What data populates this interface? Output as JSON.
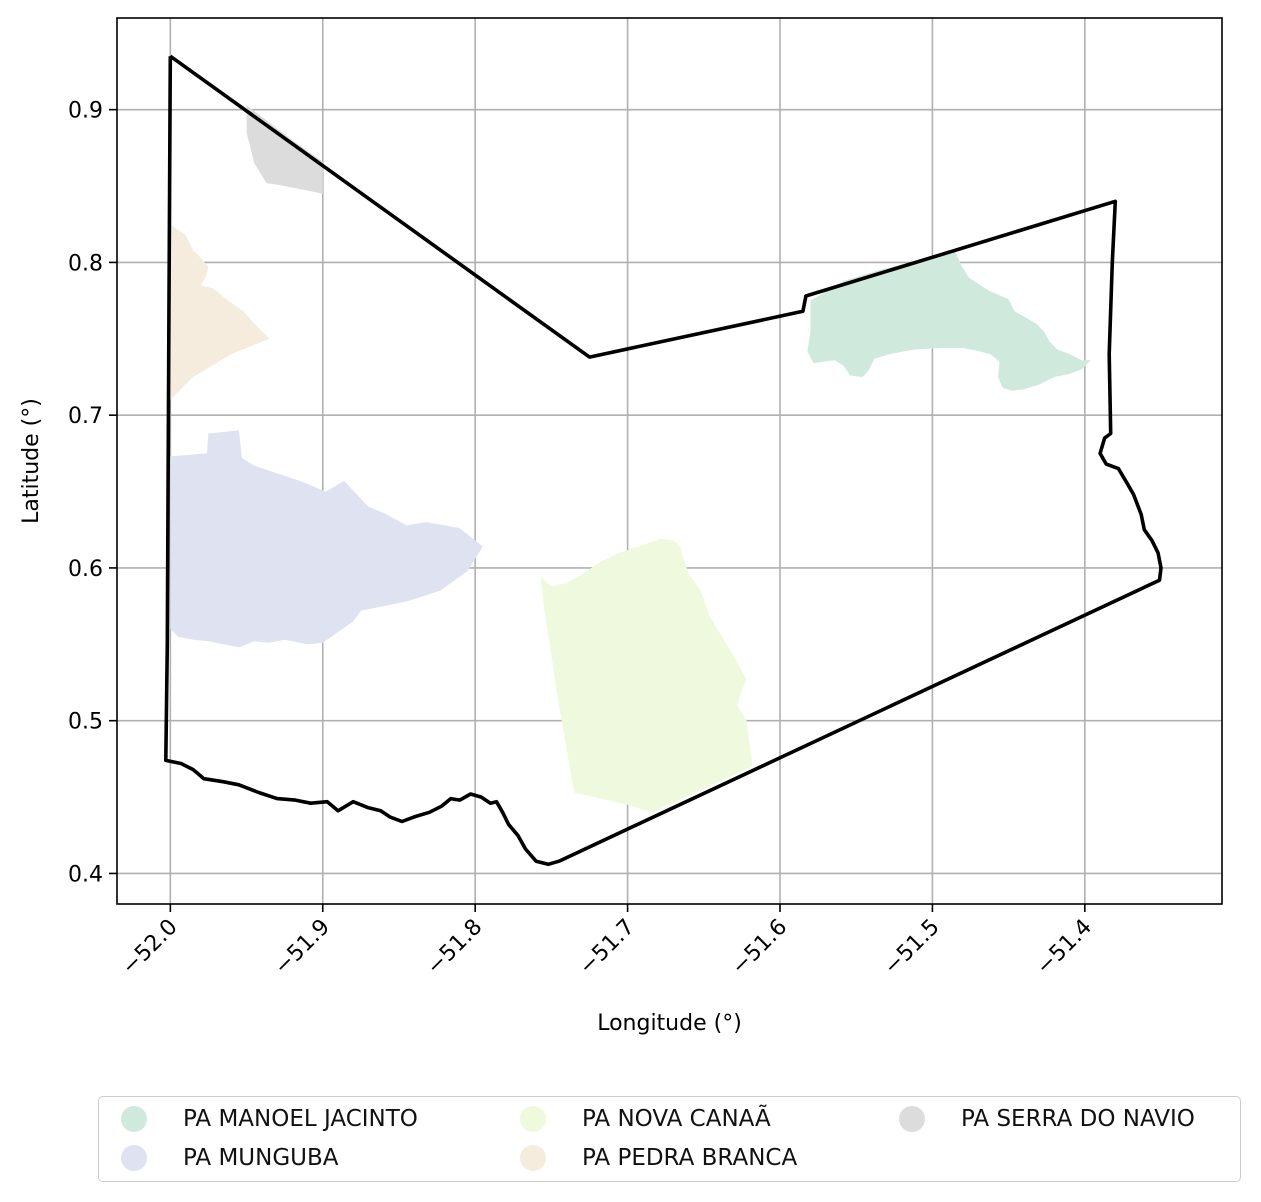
{
  "chart_data": {
    "type": "map",
    "xlabel": "Longitude (°)",
    "ylabel": "Latitude (°)",
    "xlim": [
      -52.035,
      -51.31
    ],
    "ylim": [
      0.38,
      0.96
    ],
    "xticks": [
      -52.0,
      -51.9,
      -51.8,
      -51.7,
      -51.6,
      -51.5,
      -51.4
    ],
    "xtick_labels": [
      "−52.0",
      "−51.9",
      "−51.8",
      "−51.7",
      "−51.6",
      "−51.5",
      "−51.4"
    ],
    "yticks": [
      0.4,
      0.5,
      0.6,
      0.7,
      0.8,
      0.9
    ],
    "ytick_labels": [
      "0.4",
      "0.5",
      "0.6",
      "0.7",
      "0.8",
      "0.9"
    ],
    "grid": true,
    "legend_position": "bottom",
    "boundary": {
      "color": "#000000",
      "points": [
        [
          -52.0,
          0.935
        ],
        [
          -51.725,
          0.738
        ],
        [
          -51.585,
          0.768
        ],
        [
          -51.583,
          0.778
        ],
        [
          -51.38,
          0.84
        ],
        [
          -51.382,
          0.8
        ],
        [
          -51.384,
          0.74
        ],
        [
          -51.383,
          0.688
        ],
        [
          -51.387,
          0.685
        ],
        [
          -51.39,
          0.675
        ],
        [
          -51.386,
          0.668
        ],
        [
          -51.378,
          0.665
        ],
        [
          -51.372,
          0.655
        ],
        [
          -51.368,
          0.648
        ],
        [
          -51.363,
          0.635
        ],
        [
          -51.361,
          0.625
        ],
        [
          -51.356,
          0.618
        ],
        [
          -51.352,
          0.61
        ],
        [
          -51.35,
          0.6
        ],
        [
          -51.351,
          0.592
        ],
        [
          -51.745,
          0.408
        ],
        [
          -51.752,
          0.406
        ],
        [
          -51.76,
          0.408
        ],
        [
          -51.767,
          0.416
        ],
        [
          -51.772,
          0.425
        ],
        [
          -51.778,
          0.432
        ],
        [
          -51.782,
          0.44
        ],
        [
          -51.786,
          0.447
        ],
        [
          -51.79,
          0.446
        ],
        [
          -51.796,
          0.45
        ],
        [
          -51.803,
          0.452
        ],
        [
          -51.81,
          0.448
        ],
        [
          -51.816,
          0.449
        ],
        [
          -51.822,
          0.444
        ],
        [
          -51.83,
          0.44
        ],
        [
          -51.84,
          0.437
        ],
        [
          -51.848,
          0.434
        ],
        [
          -51.856,
          0.437
        ],
        [
          -51.862,
          0.441
        ],
        [
          -51.87,
          0.443
        ],
        [
          -51.88,
          0.447
        ],
        [
          -51.89,
          0.441
        ],
        [
          -51.897,
          0.447
        ],
        [
          -51.908,
          0.446
        ],
        [
          -51.918,
          0.448
        ],
        [
          -51.93,
          0.449
        ],
        [
          -51.942,
          0.453
        ],
        [
          -51.955,
          0.458
        ],
        [
          -51.965,
          0.46
        ],
        [
          -51.978,
          0.462
        ],
        [
          -51.985,
          0.468
        ],
        [
          -51.993,
          0.472
        ],
        [
          -52.003,
          0.474
        ],
        [
          -52.002,
          0.55
        ],
        [
          -52.001,
          0.75
        ],
        [
          -52.0,
          0.935
        ]
      ]
    },
    "regions": [
      {
        "name": "PA MANOEL JACINTO",
        "color": "#cfeadd",
        "polygon": [
          [
            -51.58,
            0.775
          ],
          [
            -51.558,
            0.788
          ],
          [
            -51.535,
            0.795
          ],
          [
            -51.51,
            0.801
          ],
          [
            -51.485,
            0.807
          ],
          [
            -51.481,
            0.798
          ],
          [
            -51.476,
            0.79
          ],
          [
            -51.47,
            0.786
          ],
          [
            -51.462,
            0.781
          ],
          [
            -51.45,
            0.776
          ],
          [
            -51.446,
            0.768
          ],
          [
            -51.439,
            0.764
          ],
          [
            -51.432,
            0.76
          ],
          [
            -51.427,
            0.755
          ],
          [
            -51.423,
            0.748
          ],
          [
            -51.418,
            0.743
          ],
          [
            -51.41,
            0.74
          ],
          [
            -51.402,
            0.736
          ],
          [
            -51.396,
            0.736
          ],
          [
            -51.402,
            0.73
          ],
          [
            -51.41,
            0.727
          ],
          [
            -51.42,
            0.725
          ],
          [
            -51.43,
            0.72
          ],
          [
            -51.44,
            0.717
          ],
          [
            -51.448,
            0.716
          ],
          [
            -51.454,
            0.718
          ],
          [
            -51.457,
            0.725
          ],
          [
            -51.456,
            0.735
          ],
          [
            -51.462,
            0.74
          ],
          [
            -51.47,
            0.742
          ],
          [
            -51.48,
            0.744
          ],
          [
            -51.495,
            0.744
          ],
          [
            -51.512,
            0.743
          ],
          [
            -51.528,
            0.74
          ],
          [
            -51.538,
            0.737
          ],
          [
            -51.542,
            0.729
          ],
          [
            -51.546,
            0.725
          ],
          [
            -51.554,
            0.726
          ],
          [
            -51.558,
            0.732
          ],
          [
            -51.564,
            0.736
          ],
          [
            -51.572,
            0.735
          ],
          [
            -51.578,
            0.734
          ],
          [
            -51.582,
            0.742
          ],
          [
            -51.58,
            0.755
          ]
        ]
      },
      {
        "name": "PA MUNGUBA",
        "color": "#dfe3f1",
        "polygon": [
          [
            -52.0,
            0.673
          ],
          [
            -51.976,
            0.675
          ],
          [
            -51.975,
            0.688
          ],
          [
            -51.955,
            0.69
          ],
          [
            -51.953,
            0.672
          ],
          [
            -51.945,
            0.667
          ],
          [
            -51.93,
            0.662
          ],
          [
            -51.915,
            0.657
          ],
          [
            -51.898,
            0.65
          ],
          [
            -51.886,
            0.657
          ],
          [
            -51.87,
            0.64
          ],
          [
            -51.86,
            0.636
          ],
          [
            -51.845,
            0.628
          ],
          [
            -51.832,
            0.63
          ],
          [
            -51.82,
            0.628
          ],
          [
            -51.81,
            0.626
          ],
          [
            -51.795,
            0.614
          ],
          [
            -51.805,
            0.598
          ],
          [
            -51.823,
            0.585
          ],
          [
            -51.845,
            0.578
          ],
          [
            -51.86,
            0.575
          ],
          [
            -51.875,
            0.572
          ],
          [
            -51.88,
            0.565
          ],
          [
            -51.9,
            0.551
          ],
          [
            -51.91,
            0.55
          ],
          [
            -51.925,
            0.553
          ],
          [
            -51.935,
            0.551
          ],
          [
            -51.945,
            0.552
          ],
          [
            -51.955,
            0.548
          ],
          [
            -51.965,
            0.55
          ],
          [
            -51.975,
            0.552
          ],
          [
            -51.985,
            0.553
          ],
          [
            -51.995,
            0.555
          ],
          [
            -52.0,
            0.56
          ]
        ]
      },
      {
        "name": "PA NOVA CANAÃ",
        "color": "#eef9dd",
        "polygon": [
          [
            -51.757,
            0.594
          ],
          [
            -51.75,
            0.588
          ],
          [
            -51.74,
            0.59
          ],
          [
            -51.728,
            0.597
          ],
          [
            -51.718,
            0.604
          ],
          [
            -51.705,
            0.61
          ],
          [
            -51.69,
            0.615
          ],
          [
            -51.678,
            0.619
          ],
          [
            -51.67,
            0.618
          ],
          [
            -51.666,
            0.615
          ],
          [
            -51.66,
            0.596
          ],
          [
            -51.652,
            0.585
          ],
          [
            -51.646,
            0.568
          ],
          [
            -51.632,
            0.545
          ],
          [
            -51.622,
            0.527
          ],
          [
            -51.625,
            0.52
          ],
          [
            -51.628,
            0.51
          ],
          [
            -51.622,
            0.5
          ],
          [
            -51.62,
            0.485
          ],
          [
            -51.618,
            0.47
          ],
          [
            -51.684,
            0.44
          ],
          [
            -51.7,
            0.445
          ],
          [
            -51.735,
            0.453
          ],
          [
            -51.745,
            0.51
          ],
          [
            -51.755,
            0.575
          ]
        ]
      },
      {
        "name": "PA PEDRA BRANCA",
        "color": "#f5ecde",
        "polygon": [
          [
            -52.0,
            0.825
          ],
          [
            -51.99,
            0.818
          ],
          [
            -51.985,
            0.808
          ],
          [
            -51.98,
            0.803
          ],
          [
            -51.975,
            0.797
          ],
          [
            -51.977,
            0.79
          ],
          [
            -51.98,
            0.785
          ],
          [
            -51.972,
            0.783
          ],
          [
            -51.962,
            0.775
          ],
          [
            -51.952,
            0.768
          ],
          [
            -51.945,
            0.76
          ],
          [
            -51.935,
            0.75
          ],
          [
            -51.96,
            0.74
          ],
          [
            -51.985,
            0.725
          ],
          [
            -52.0,
            0.71
          ]
        ]
      },
      {
        "name": "PA SERRA DO NAVIO",
        "color": "#dcdcdc",
        "polygon": [
          [
            -51.95,
            0.903
          ],
          [
            -51.92,
            0.88
          ],
          [
            -51.9,
            0.866
          ],
          [
            -51.9,
            0.845
          ],
          [
            -51.925,
            0.85
          ],
          [
            -51.937,
            0.852
          ],
          [
            -51.945,
            0.865
          ],
          [
            -51.95,
            0.885
          ]
        ]
      }
    ]
  }
}
